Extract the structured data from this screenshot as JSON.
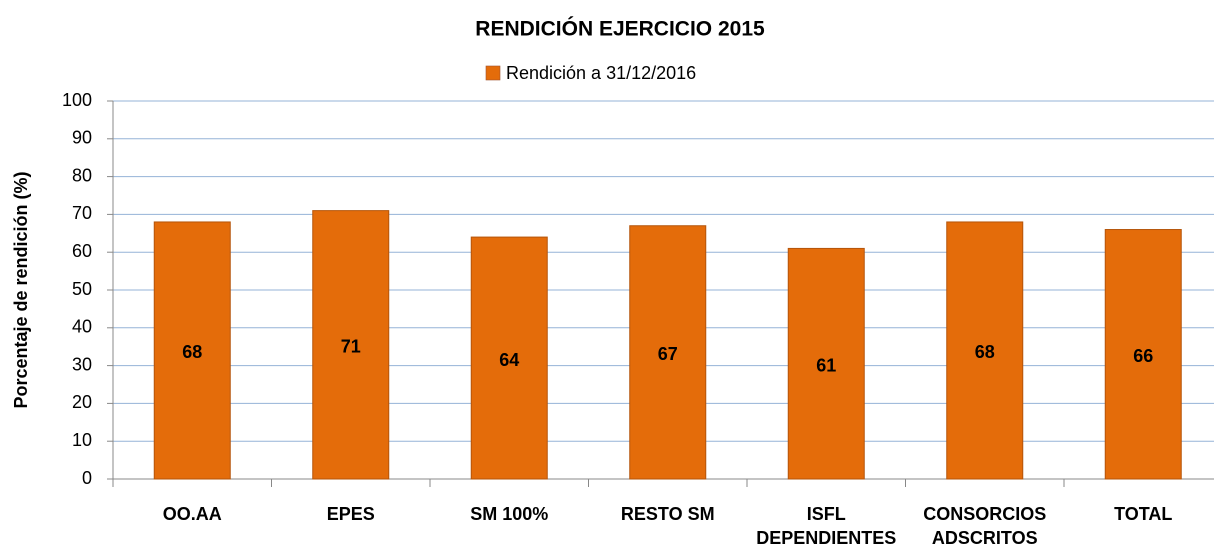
{
  "chart_data": {
    "type": "bar",
    "title": "RENDICIÓN EJERCICIO 2015",
    "y_label": "Porcentaje de rendición (%)",
    "categories": [
      "OO.AA",
      "EPES",
      "SM 100%",
      "RESTO SM",
      "ISFL\nDEPENDIENTES",
      "CONSORCIOS\nADSCRITOS",
      "TOTAL"
    ],
    "series": [
      {
        "name": "Rendición a 31/12/2016",
        "color": "#e46c0a",
        "values": [
          68,
          71,
          64,
          67,
          61,
          68,
          66
        ]
      }
    ],
    "ylim": [
      0,
      100
    ],
    "yticks": [
      0,
      10,
      20,
      30,
      40,
      50,
      60,
      70,
      80,
      90,
      100
    ],
    "grid": true,
    "legend": "top"
  }
}
